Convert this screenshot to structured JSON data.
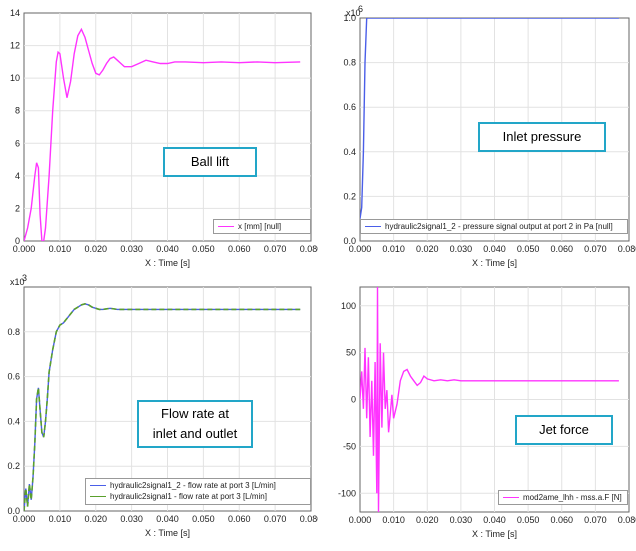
{
  "chart_data": [
    {
      "type": "line",
      "title": "Ball lift",
      "xlabel": "X : Time [s]",
      "ylabel": "",
      "xlim": [
        0,
        0.08
      ],
      "ylim": [
        0,
        14
      ],
      "xticks": [
        "0.000",
        "0.010",
        "0.020",
        "0.030",
        "0.040",
        "0.050",
        "0.060",
        "0.070",
        "0.080"
      ],
      "yticks": [
        "0",
        "2",
        "4",
        "6",
        "8",
        "10",
        "12",
        "14"
      ],
      "grid": true,
      "legend": "bottom-right",
      "series": [
        {
          "name": "x [mm] [null]",
          "color": "#ff33ff",
          "x": [
            0,
            0.001,
            0.002,
            0.003,
            0.0035,
            0.004,
            0.0045,
            0.005,
            0.0055,
            0.006,
            0.007,
            0.008,
            0.009,
            0.0095,
            0.01,
            0.011,
            0.012,
            0.013,
            0.014,
            0.015,
            0.016,
            0.017,
            0.018,
            0.019,
            0.02,
            0.021,
            0.022,
            0.023,
            0.024,
            0.025,
            0.026,
            0.027,
            0.028,
            0.03,
            0.032,
            0.034,
            0.036,
            0.038,
            0.04,
            0.042,
            0.045,
            0.05,
            0.055,
            0.06,
            0.065,
            0.07,
            0.077
          ],
          "y": [
            0,
            0.8,
            2.0,
            4.0,
            4.8,
            4.5,
            1.6,
            0,
            0,
            0.8,
            4.0,
            8.0,
            11.0,
            11.6,
            11.5,
            10.0,
            8.8,
            9.8,
            11.5,
            12.6,
            13.0,
            12.5,
            11.7,
            10.9,
            10.3,
            10.2,
            10.5,
            10.9,
            11.2,
            11.3,
            11.1,
            10.9,
            10.7,
            10.7,
            10.9,
            11.1,
            11.0,
            10.9,
            10.9,
            11.0,
            11.0,
            10.95,
            11.0,
            10.95,
            11.0,
            10.95,
            11.0
          ]
        }
      ],
      "callout": "Ball lift"
    },
    {
      "type": "line",
      "title": "Inlet pressure",
      "xlabel": "X : Time [s]",
      "ylabel": "",
      "y_multiplier": "x10",
      "y_multiplier_exp": "6",
      "xlim": [
        0,
        0.08
      ],
      "ylim": [
        0,
        1.0
      ],
      "xticks": [
        "0.000",
        "0.010",
        "0.020",
        "0.030",
        "0.040",
        "0.050",
        "0.060",
        "0.070",
        "0.080"
      ],
      "yticks": [
        "0.0",
        "0.2",
        "0.4",
        "0.6",
        "0.8",
        "1.0"
      ],
      "grid": true,
      "legend": "bottom-right",
      "series": [
        {
          "name": "hydraulic2signal1_2 - pressure signal output at port 2 in Pa [null]",
          "color": "#4a5ee8",
          "x": [
            0,
            0.0005,
            0.001,
            0.0015,
            0.002,
            0.003,
            0.077
          ],
          "y": [
            0.1,
            0.15,
            0.4,
            0.8,
            1.0,
            1.0,
            1.0
          ]
        }
      ],
      "callout": "Inlet pressure"
    },
    {
      "type": "line",
      "title": "Flow rate at inlet and outlet",
      "xlabel": "X : Time [s]",
      "ylabel": "",
      "y_multiplier": "x10",
      "y_multiplier_exp": "3",
      "xlim": [
        0,
        0.08
      ],
      "ylim": [
        0,
        1.0
      ],
      "xticks": [
        "0.000",
        "0.010",
        "0.020",
        "0.030",
        "0.040",
        "0.050",
        "0.060",
        "0.070",
        "0.080"
      ],
      "yticks": [
        "0.0",
        "0.2",
        "0.4",
        "0.6",
        "0.8"
      ],
      "grid": true,
      "legend": "bottom-right",
      "series": [
        {
          "name": "hydraulic2signal1_2 - flow rate at port 3 [L/min]",
          "color": "#4a5ee8",
          "x": [
            0,
            0.0005,
            0.001,
            0.0015,
            0.002,
            0.0025,
            0.003,
            0.0035,
            0.004,
            0.0045,
            0.005,
            0.0055,
            0.006,
            0.0065,
            0.007,
            0.008,
            0.009,
            0.01,
            0.011,
            0.012,
            0.013,
            0.014,
            0.015,
            0.016,
            0.017,
            0.018,
            0.019,
            0.02,
            0.021,
            0.022,
            0.024,
            0.026,
            0.028,
            0.03,
            0.034,
            0.04,
            0.05,
            0.06,
            0.077
          ],
          "y": [
            0,
            0.1,
            0.02,
            0.12,
            0.05,
            0.15,
            0.3,
            0.5,
            0.55,
            0.45,
            0.35,
            0.33,
            0.4,
            0.5,
            0.62,
            0.72,
            0.8,
            0.83,
            0.84,
            0.86,
            0.88,
            0.9,
            0.91,
            0.92,
            0.925,
            0.92,
            0.91,
            0.905,
            0.9,
            0.9,
            0.905,
            0.9,
            0.9,
            0.9,
            0.9,
            0.9,
            0.9,
            0.9,
            0.9
          ]
        },
        {
          "name": "hydraulic2signal1 - flow rate at port 3 [L/min]",
          "color": "#5aa02c",
          "x": [
            0,
            0.0005,
            0.001,
            0.0015,
            0.002,
            0.0025,
            0.003,
            0.0035,
            0.004,
            0.0045,
            0.005,
            0.0055,
            0.006,
            0.0065,
            0.007,
            0.008,
            0.009,
            0.01,
            0.011,
            0.012,
            0.013,
            0.014,
            0.015,
            0.016,
            0.017,
            0.018,
            0.019,
            0.02,
            0.021,
            0.022,
            0.024,
            0.026,
            0.028,
            0.03,
            0.034,
            0.04,
            0.05,
            0.06,
            0.077
          ],
          "y": [
            0,
            0.1,
            0.02,
            0.12,
            0.05,
            0.15,
            0.3,
            0.5,
            0.55,
            0.45,
            0.35,
            0.33,
            0.4,
            0.5,
            0.62,
            0.72,
            0.8,
            0.83,
            0.84,
            0.86,
            0.88,
            0.9,
            0.91,
            0.92,
            0.925,
            0.92,
            0.91,
            0.905,
            0.9,
            0.9,
            0.905,
            0.9,
            0.9,
            0.9,
            0.9,
            0.9,
            0.9,
            0.9,
            0.9
          ]
        }
      ],
      "callout": "Flow rate at\ninlet and outlet"
    },
    {
      "type": "line",
      "title": "Jet force",
      "xlabel": "X : Time [s]",
      "ylabel": "",
      "xlim": [
        0,
        0.08
      ],
      "ylim": [
        -120,
        120
      ],
      "xticks": [
        "0.000",
        "0.010",
        "0.020",
        "0.030",
        "0.040",
        "0.050",
        "0.060",
        "0.070",
        "0.080"
      ],
      "yticks": [
        "-100",
        "-50",
        "0",
        "50",
        "100"
      ],
      "ytick_values": [
        -100,
        -50,
        0,
        50,
        100
      ],
      "grid": true,
      "legend": "bottom-right",
      "series": [
        {
          "name": "mod2ame_lhh - mss.a.F [N]",
          "color": "#ff33ff",
          "x": [
            0,
            0.0005,
            0.001,
            0.0015,
            0.002,
            0.0025,
            0.003,
            0.0035,
            0.004,
            0.0045,
            0.005,
            0.0052,
            0.0055,
            0.006,
            0.0065,
            0.007,
            0.0075,
            0.008,
            0.0085,
            0.009,
            0.0095,
            0.01,
            0.011,
            0.012,
            0.013,
            0.014,
            0.015,
            0.016,
            0.017,
            0.018,
            0.019,
            0.02,
            0.022,
            0.024,
            0.026,
            0.028,
            0.03,
            0.035,
            0.04,
            0.05,
            0.06,
            0.077
          ],
          "y": [
            0,
            30,
            -10,
            55,
            -20,
            45,
            -40,
            20,
            -60,
            40,
            -100,
            120,
            -120,
            60,
            -30,
            50,
            -10,
            10,
            -35,
            -15,
            5,
            -20,
            -5,
            20,
            30,
            32,
            25,
            20,
            15,
            18,
            25,
            22,
            20,
            21,
            20,
            21,
            20,
            20,
            20,
            20,
            20,
            20
          ]
        }
      ],
      "callout": "Jet force"
    }
  ]
}
